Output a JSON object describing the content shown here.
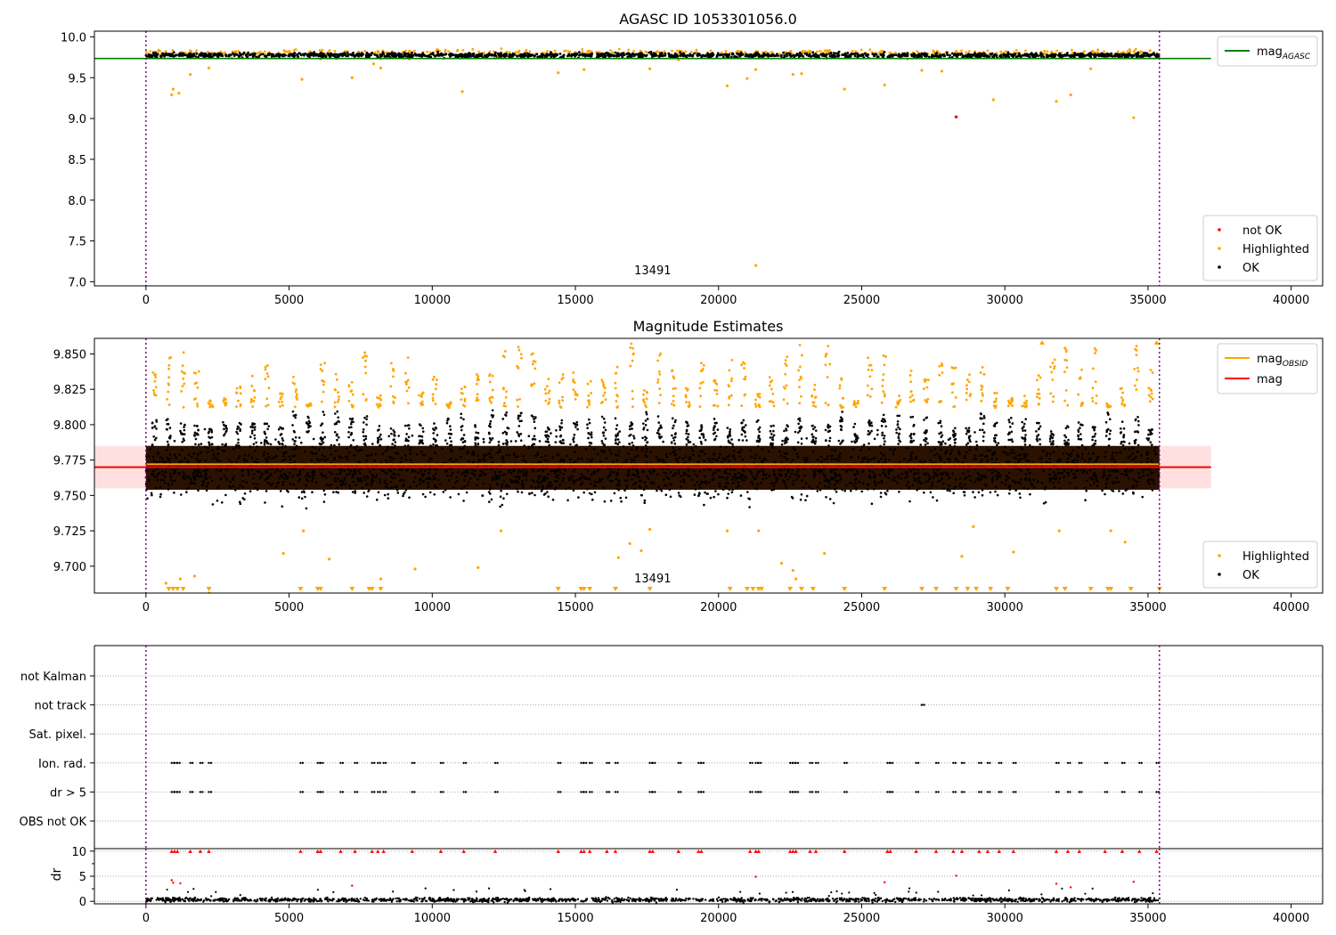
{
  "chart_data": [
    {
      "type": "scatter",
      "title": "AGASC ID 1053301056.0",
      "xlabel": "",
      "ylabel": "",
      "xlim": [
        -1800,
        41100
      ],
      "ylim": [
        6.95,
        10.07
      ],
      "xticks": [
        0,
        5000,
        10000,
        15000,
        20000,
        25000,
        30000,
        35000,
        40000
      ],
      "xtick_labels": [
        "0",
        "5000",
        "10000",
        "15000",
        "20000",
        "25000",
        "30000",
        "35000",
        "40000"
      ],
      "yticks": [
        7.0,
        7.5,
        8.0,
        8.5,
        9.0,
        9.5,
        10.0
      ],
      "ytick_labels": [
        "7.0",
        "7.5",
        "8.0",
        "8.5",
        "9.0",
        "9.5",
        "10.0"
      ],
      "vlines": [
        0,
        35400
      ],
      "annotation": {
        "text": "13491",
        "x": 17700,
        "y": 7.05
      },
      "reference_lines": [
        {
          "name": "mag_AGASC",
          "name_main": "mag",
          "name_sub": "AGASC",
          "y": 9.735,
          "x_range": [
            -1800,
            37200
          ],
          "color": "#008000"
        }
      ],
      "series": [
        {
          "name": "OK",
          "color": "#000000",
          "band": {
            "x_range": [
              0,
              35400
            ],
            "y_center": 9.775,
            "y_spread": 0.025
          }
        },
        {
          "name": "Highlighted",
          "color": "#ffa500",
          "points": [
            [
              900,
              9.29
            ],
            [
              950,
              9.36
            ],
            [
              1150,
              9.31
            ],
            [
              1550,
              9.54
            ],
            [
              2200,
              9.62
            ],
            [
              5450,
              9.48
            ],
            [
              7200,
              9.5
            ],
            [
              7950,
              9.67
            ],
            [
              8200,
              9.62
            ],
            [
              11050,
              9.33
            ],
            [
              14400,
              9.56
            ],
            [
              15300,
              9.6
            ],
            [
              17600,
              9.61
            ],
            [
              20300,
              9.4
            ],
            [
              21000,
              9.49
            ],
            [
              21300,
              9.6
            ],
            [
              22600,
              9.54
            ],
            [
              22900,
              9.55
            ],
            [
              24400,
              9.36
            ],
            [
              25800,
              9.41
            ],
            [
              27100,
              9.59
            ],
            [
              27800,
              9.58
            ],
            [
              29600,
              9.23
            ],
            [
              31800,
              9.21
            ],
            [
              32300,
              9.29
            ],
            [
              33000,
              9.61
            ],
            [
              34500,
              9.01
            ],
            [
              21300,
              7.2
            ],
            [
              3000,
              9.74
            ],
            [
              6100,
              9.73
            ],
            [
              9200,
              9.73
            ],
            [
              12200,
              9.74
            ],
            [
              18600,
              9.72
            ],
            [
              26600,
              9.73
            ]
          ],
          "band": {
            "x_range": [
              0,
              35400
            ],
            "y_center": 9.81,
            "y_spread": 0.03
          }
        },
        {
          "name": "not OK",
          "color": "#ff0000",
          "points": [
            [
              28300,
              9.02
            ]
          ]
        }
      ],
      "legend": {
        "placement": "lower right",
        "entries": [
          "not OK",
          "Highlighted",
          "OK"
        ]
      },
      "legend_lines": {
        "placement": "upper right"
      }
    },
    {
      "type": "scatter",
      "title": "Magnitude Estimates",
      "xlabel": "",
      "ylabel": "",
      "xlim": [
        -1800,
        41100
      ],
      "ylim": [
        9.681,
        9.861
      ],
      "xticks": [
        0,
        5000,
        10000,
        15000,
        20000,
        25000,
        30000,
        35000,
        40000
      ],
      "xtick_labels": [
        "0",
        "5000",
        "10000",
        "15000",
        "20000",
        "25000",
        "30000",
        "35000",
        "40000"
      ],
      "yticks": [
        9.7,
        9.725,
        9.75,
        9.775,
        9.8,
        9.825,
        9.85
      ],
      "ytick_labels": [
        "9.700",
        "9.725",
        "9.750",
        "9.775",
        "9.800",
        "9.825",
        "9.850"
      ],
      "vlines": [
        0,
        35400
      ],
      "annotation": {
        "text": "13491",
        "x": 17700,
        "y": 9.686
      },
      "reference_lines": [
        {
          "name": "mag_OBSID",
          "name_main": "mag",
          "name_sub": "OBSID",
          "y": 9.772,
          "x_range": [
            0,
            35400
          ],
          "color": "#ffa500"
        },
        {
          "name": "mag",
          "name_main": "mag",
          "name_sub": "",
          "y": 9.77,
          "x_range": [
            -1800,
            37200
          ],
          "color": "#ff0000",
          "band": [
            9.755,
            9.785
          ]
        }
      ],
      "series": [
        {
          "name": "OK",
          "color": "#000000",
          "band": {
            "x_range": [
              0,
              35400
            ],
            "y_center": 9.768,
            "y_spread": 0.017
          }
        },
        {
          "name": "Highlighted",
          "color": "#ffa500",
          "points": [
            [
              700,
              9.688
            ],
            [
              1200,
              9.691
            ],
            [
              1700,
              9.693
            ],
            [
              2200,
              9.681
            ],
            [
              4800,
              9.709
            ],
            [
              5500,
              9.725
            ],
            [
              6400,
              9.705
            ],
            [
              8200,
              9.691
            ],
            [
              9400,
              9.698
            ],
            [
              11600,
              9.699
            ],
            [
              12400,
              9.725
            ],
            [
              16500,
              9.706
            ],
            [
              16900,
              9.716
            ],
            [
              17300,
              9.711
            ],
            [
              17600,
              9.726
            ],
            [
              20300,
              9.725
            ],
            [
              21400,
              9.725
            ],
            [
              22200,
              9.702
            ],
            [
              22600,
              9.697
            ],
            [
              22700,
              9.691
            ],
            [
              23700,
              9.709
            ],
            [
              28500,
              9.707
            ],
            [
              28900,
              9.728
            ],
            [
              30300,
              9.71
            ],
            [
              31900,
              9.725
            ],
            [
              33700,
              9.725
            ],
            [
              34200,
              9.717
            ]
          ]
        }
      ],
      "markers_at_bottom": [
        800,
        950,
        1100,
        1300,
        2200,
        5400,
        6000,
        6100,
        7200,
        7800,
        7900,
        8200,
        14400,
        15200,
        15300,
        15500,
        16400,
        17600,
        20400,
        21000,
        21200,
        21400,
        21500,
        22500,
        22900,
        23300,
        24400,
        25800,
        27100,
        27600,
        28300,
        28700,
        29000,
        29500,
        30100,
        31800,
        32100,
        33000,
        33600,
        33700,
        34400,
        35400
      ],
      "markers_at_top": [
        31300,
        35300
      ],
      "legend": {
        "placement": "lower right",
        "entries": [
          "Highlighted",
          "OK"
        ]
      },
      "legend_lines": {
        "placement": "upper right"
      }
    },
    {
      "type": "scatter",
      "title": "",
      "xlabel": "",
      "ylabel": "",
      "xlim": [
        -1800,
        41100
      ],
      "categories": [
        "not Kalman",
        "not track",
        "Sat. pixel.",
        "Ion. rad.",
        "dr > 5",
        "OBS not OK"
      ],
      "vlines": [
        0,
        35400
      ],
      "flag_points": {
        "not track": [
          27100
        ],
        "Ion. rad.": [
          900,
          1000,
          1100,
          1550,
          1900,
          2200,
          5400,
          6000,
          6100,
          6800,
          7300,
          7900,
          8100,
          8300,
          9300,
          10300,
          11100,
          12200,
          14400,
          15200,
          15300,
          15500,
          16100,
          16400,
          17600,
          17700,
          18600,
          19300,
          19400,
          21100,
          21300,
          21400,
          22500,
          22600,
          22700,
          23200,
          23400,
          24400,
          25900,
          26000,
          26900,
          27600,
          28200,
          28500,
          29100,
          29400,
          29800,
          30300,
          31800,
          32200,
          32600,
          33500,
          34100,
          34700,
          35300
        ],
        "dr > 5": [
          900,
          1000,
          1100,
          1550,
          1900,
          2200,
          5400,
          6000,
          6100,
          6800,
          7300,
          7900,
          8100,
          8300,
          9300,
          10300,
          11100,
          12200,
          14400,
          15200,
          15300,
          15500,
          16100,
          16400,
          17600,
          17700,
          18600,
          19300,
          19400,
          21100,
          21300,
          21400,
          22500,
          22600,
          22700,
          23200,
          23400,
          24400,
          25900,
          26000,
          26900,
          27600,
          28200,
          28500,
          29100,
          29400,
          29800,
          30300,
          31800,
          32200,
          32600,
          33500,
          34100,
          34700,
          35300
        ]
      }
    },
    {
      "type": "scatter",
      "title": "",
      "xlabel": "",
      "ylabel": "dr",
      "xlim": [
        -1800,
        41100
      ],
      "ylim": [
        -0.5,
        10.5
      ],
      "xticks": [
        0,
        5000,
        10000,
        15000,
        20000,
        25000,
        30000,
        35000,
        40000
      ],
      "xtick_labels": [
        "0",
        "5000",
        "10000",
        "15000",
        "20000",
        "25000",
        "30000",
        "35000",
        "40000"
      ],
      "yticks": [
        0,
        5,
        10
      ],
      "ytick_labels": [
        "0",
        "5",
        "10"
      ],
      "vlines": [
        0,
        35400
      ],
      "series": [
        {
          "name": "OK",
          "color": "#000000",
          "band": {
            "x_range": [
              0,
              35400
            ],
            "y_center": 0.3,
            "y_spread": 0.35
          }
        },
        {
          "name": "not OK",
          "color": "#ff0000",
          "points": [
            [
              900,
              4.2
            ],
            [
              950,
              3.7
            ],
            [
              1200,
              3.6
            ],
            [
              7200,
              3.1
            ],
            [
              21300,
              4.9
            ],
            [
              25800,
              3.8
            ],
            [
              28300,
              5.1
            ],
            [
              31800,
              3.5
            ],
            [
              32300,
              2.8
            ],
            [
              34500,
              3.9
            ]
          ],
          "clipped_x": [
            900,
            1000,
            1100,
            1550,
            1900,
            2200,
            5400,
            6000,
            6100,
            6800,
            7300,
            7900,
            8100,
            8300,
            9300,
            10300,
            11100,
            12200,
            14400,
            15200,
            15300,
            15500,
            16100,
            16400,
            17600,
            17700,
            18600,
            19300,
            19400,
            21100,
            21300,
            21400,
            22500,
            22600,
            22700,
            23200,
            23400,
            24400,
            25900,
            26000,
            26900,
            27600,
            28200,
            28500,
            29100,
            29400,
            29800,
            30300,
            31800,
            32200,
            32600,
            33500,
            34100,
            34700,
            35300
          ]
        }
      ]
    }
  ]
}
